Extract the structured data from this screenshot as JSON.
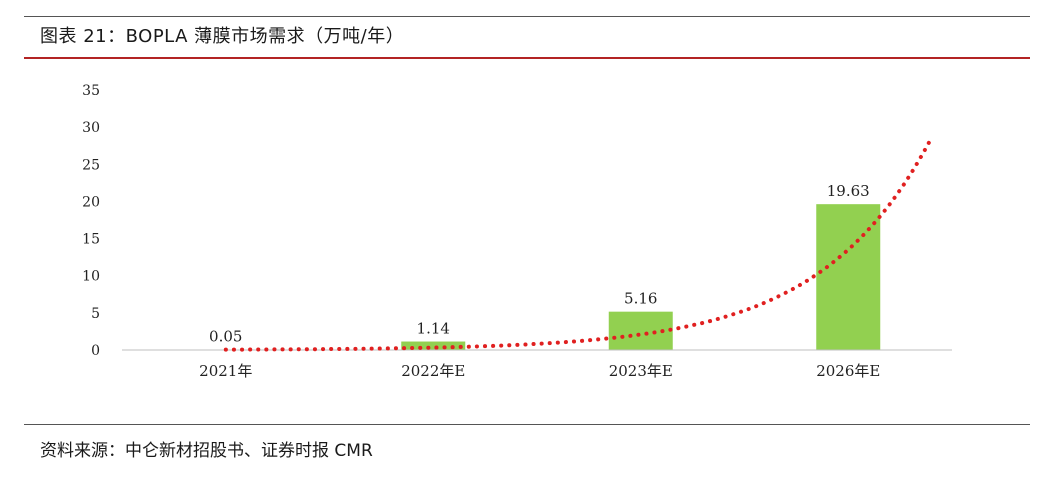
{
  "header": {
    "title": "图表 21：BOPLA 薄膜市场需求（万吨/年）"
  },
  "footer": {
    "source": "资料来源：中仑新材招股书、证券时报 CMR"
  },
  "chart_data": {
    "type": "bar",
    "title": "",
    "xlabel": "",
    "ylabel": "",
    "categories": [
      "2021年",
      "2022年E",
      "2023年E",
      "2026年E"
    ],
    "values": [
      0.05,
      1.14,
      5.16,
      19.63
    ],
    "data_labels": [
      "0.05",
      "1.14",
      "5.16",
      "19.63"
    ],
    "ylim": [
      0,
      35
    ],
    "yticks": [
      0,
      5,
      10,
      15,
      20,
      25,
      30,
      35
    ],
    "grid": false,
    "legend": "none",
    "bar_color": "#92d050",
    "trendline": {
      "type": "exponential",
      "style": "dotted",
      "color": "#e02020",
      "endpoint": {
        "x_index": 3.4,
        "y": 28.5
      }
    }
  }
}
